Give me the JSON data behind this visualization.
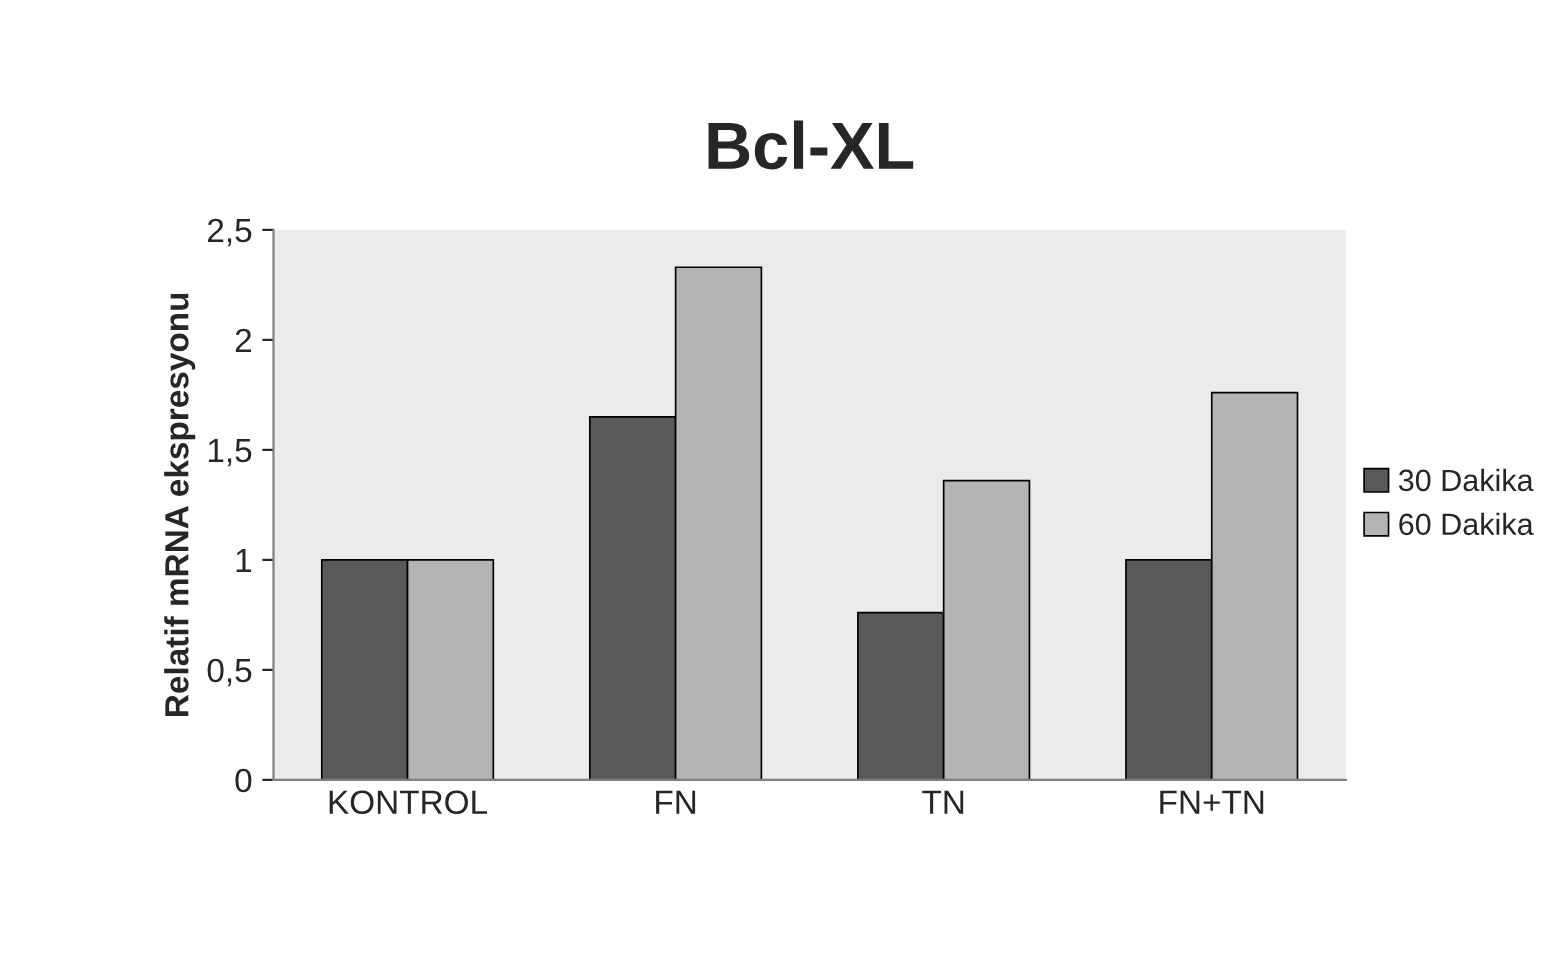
{
  "chart_data": {
    "type": "bar",
    "title": "Bcl-XL",
    "ylabel": "Relatif mRNA ekspresyonu",
    "categories": [
      "KONTROL",
      "FN",
      "TN",
      "FN+TN"
    ],
    "series": [
      {
        "name": "30 Dakika",
        "color": "#595959",
        "values": [
          1.0,
          1.65,
          0.76,
          1.0
        ]
      },
      {
        "name": "60 Dakika",
        "color": "#b3b3b3",
        "values": [
          1.0,
          2.33,
          1.36,
          1.76
        ]
      }
    ],
    "ylim": [
      0,
      2.5
    ],
    "yticks": [
      0,
      {
        "value": 0.5,
        "label": "0,5"
      },
      1,
      {
        "value": 1.5,
        "label": "1,5"
      },
      2,
      {
        "value": 2.5,
        "label": "2,5"
      }
    ],
    "grid": false,
    "legend": "right"
  }
}
